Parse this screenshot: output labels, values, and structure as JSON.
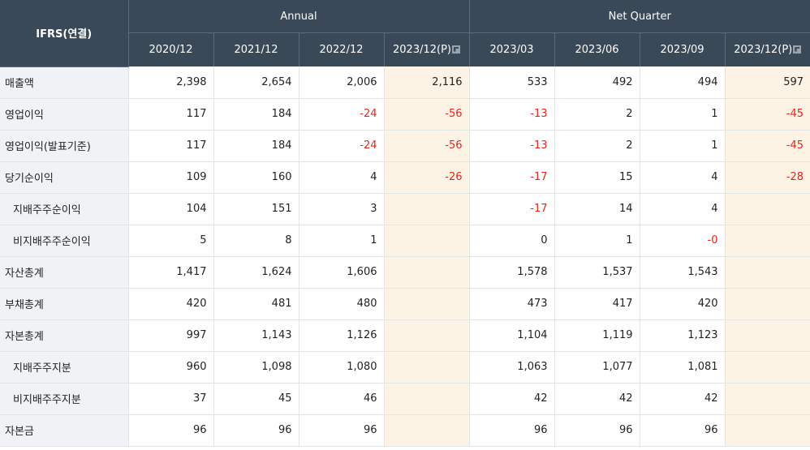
{
  "header": {
    "corner": "IFRS(연결)",
    "group_annual": "Annual",
    "group_quarter": "Net Quarter",
    "periods": [
      "2020/12",
      "2021/12",
      "2022/12",
      "2023/12(P)",
      "2023/03",
      "2023/06",
      "2023/09",
      "2023/12(P)"
    ]
  },
  "colors": {
    "header_bg": "#3a4957",
    "estimate_bg": "#fdf3e4",
    "negative": "#e8231d",
    "label_bg": "#f0f2f5"
  },
  "rows": [
    {
      "label": "매출액",
      "sub": false,
      "values": [
        "2,398",
        "2,654",
        "2,006",
        "2,116",
        "533",
        "492",
        "494",
        "597"
      ]
    },
    {
      "label": "영업이익",
      "sub": false,
      "values": [
        "117",
        "184",
        "-24",
        "-56",
        "-13",
        "2",
        "1",
        "-45"
      ]
    },
    {
      "label": "영업이익(발표기준)",
      "sub": false,
      "values": [
        "117",
        "184",
        "-24",
        "-56",
        "-13",
        "2",
        "1",
        "-45"
      ]
    },
    {
      "label": "당기순이익",
      "sub": false,
      "values": [
        "109",
        "160",
        "4",
        "-26",
        "-17",
        "15",
        "4",
        "-28"
      ]
    },
    {
      "label": "지배주주순이익",
      "sub": true,
      "values": [
        "104",
        "151",
        "3",
        "",
        "-17",
        "14",
        "4",
        ""
      ]
    },
    {
      "label": "비지배주주순이익",
      "sub": true,
      "values": [
        "5",
        "8",
        "1",
        "",
        "0",
        "1",
        "-0",
        ""
      ]
    },
    {
      "label": "자산총계",
      "sub": false,
      "values": [
        "1,417",
        "1,624",
        "1,606",
        "",
        "1,578",
        "1,537",
        "1,543",
        ""
      ]
    },
    {
      "label": "부채총계",
      "sub": false,
      "values": [
        "420",
        "481",
        "480",
        "",
        "473",
        "417",
        "420",
        ""
      ]
    },
    {
      "label": "자본총계",
      "sub": false,
      "values": [
        "997",
        "1,143",
        "1,126",
        "",
        "1,104",
        "1,119",
        "1,123",
        ""
      ]
    },
    {
      "label": "지배주주지분",
      "sub": true,
      "values": [
        "960",
        "1,098",
        "1,080",
        "",
        "1,063",
        "1,077",
        "1,081",
        ""
      ]
    },
    {
      "label": "비지배주주지분",
      "sub": true,
      "values": [
        "37",
        "45",
        "46",
        "",
        "42",
        "42",
        "42",
        ""
      ]
    },
    {
      "label": "자본금",
      "sub": false,
      "values": [
        "96",
        "96",
        "96",
        "",
        "96",
        "96",
        "96",
        ""
      ]
    }
  ]
}
